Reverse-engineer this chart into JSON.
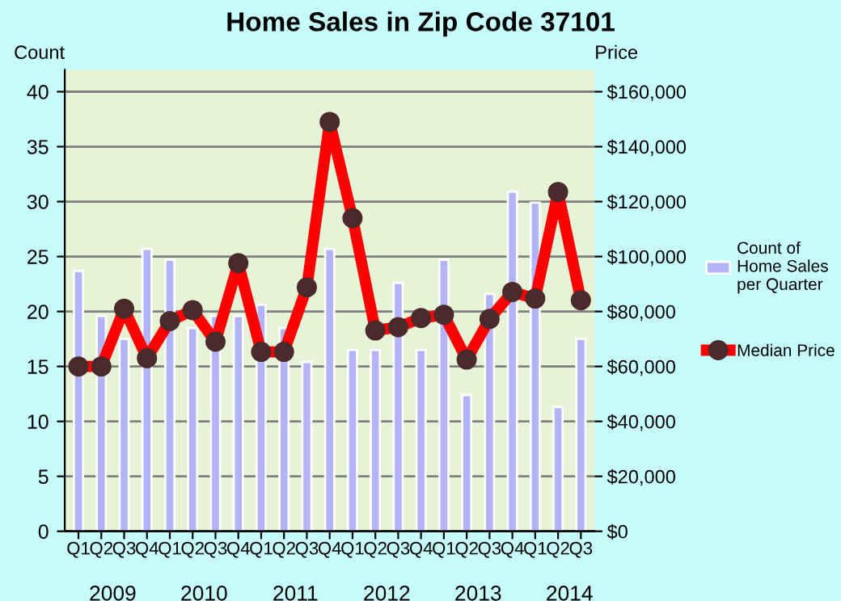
{
  "chart_data": {
    "type": "bar",
    "title": "Home Sales in Zip Code 37101",
    "ylabel": "Count",
    "y2label": "Price",
    "categories": [
      "Q1",
      "Q2",
      "Q3",
      "Q4",
      "Q1",
      "Q2",
      "Q3",
      "Q4",
      "Q1",
      "Q2",
      "Q3",
      "Q4",
      "Q1",
      "Q2",
      "Q3",
      "Q4",
      "Q1",
      "Q2",
      "Q3",
      "Q4",
      "Q1",
      "Q2",
      "Q3"
    ],
    "annotations": [
      "2009",
      "2010",
      "2011",
      "2012",
      "2013",
      "2014"
    ],
    "series": [
      {
        "name": "Count of\nHome Sales\nper Quarter",
        "color": "#b3b3f8",
        "values": [
          23.7,
          19.6,
          17.5,
          25.7,
          24.7,
          18.5,
          19.6,
          19.6,
          20.6,
          18.5,
          15.4,
          25.7,
          16.5,
          16.5,
          22.6,
          16.5,
          24.7,
          12.4,
          21.6,
          30.9,
          29.9,
          11.3,
          17.5
        ]
      },
      {
        "name": "Median Price",
        "type": "line",
        "axis": "y2",
        "color": "#ff0000",
        "marker": "circle",
        "values": [
          60000,
          60000,
          81000,
          63000,
          76500,
          80500,
          69000,
          97600,
          65300,
          65300,
          88800,
          149000,
          114000,
          73100,
          74300,
          77600,
          78800,
          62500,
          77300,
          87100,
          84700,
          123500,
          84100
        ]
      }
    ],
    "ylim": [
      0,
      42
    ],
    "yticks": [
      0,
      5,
      10,
      15,
      20,
      25,
      30,
      35,
      40
    ],
    "y2lim": [
      0,
      168000
    ],
    "y2ticks": [
      {
        "value": 0,
        "label": "$0"
      },
      {
        "value": 20000,
        "label": "$20,000"
      },
      {
        "value": 40000,
        "label": "$40,000"
      },
      {
        "value": 60000,
        "label": "$60,000"
      },
      {
        "value": 80000,
        "label": "$80,000"
      },
      {
        "value": 100000,
        "label": "$100,000"
      },
      {
        "value": 120000,
        "label": "$120,000"
      },
      {
        "value": 140000,
        "label": "$140,000"
      },
      {
        "value": 160000,
        "label": "$160,000"
      }
    ],
    "grid": "y",
    "legend": "right"
  }
}
